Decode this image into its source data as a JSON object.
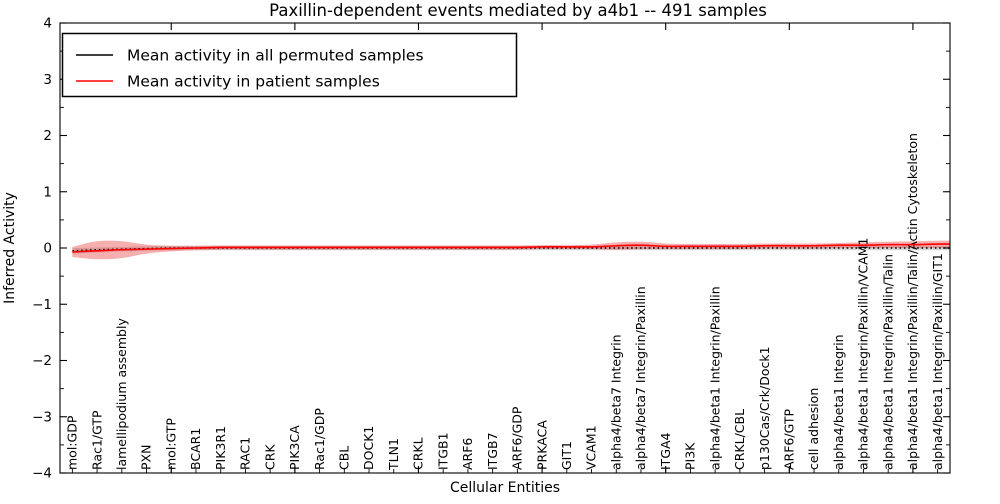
{
  "chart_data": {
    "type": "line",
    "title": "Paxillin-dependent events mediated by a4b1 -- 491 samples",
    "xlabel": "Cellular Entities",
    "ylabel": "Inferred Activity",
    "ylim": [
      -4,
      4
    ],
    "y_major_ticks": [
      -4,
      -3,
      -2,
      -1,
      0,
      1,
      2,
      3,
      4
    ],
    "y_minor_step": 0.5,
    "x_major_ticks": [
      4,
      9,
      14,
      19,
      24,
      29,
      34
    ],
    "grid": false,
    "legend_position": "upper left",
    "background": "#ffffff",
    "frame_color": "#000000",
    "categories": [
      "mol:GDP",
      "Rac1/GTP",
      "lamellipodium assembly",
      "PXN",
      "mol:GTP",
      "BCAR1",
      "PIK3R1",
      "RAC1",
      "CRK",
      "PIK3CA",
      "Rac1/GDP",
      "CBL",
      "DOCK1",
      "TLN1",
      "CRKL",
      "ITGB1",
      "ARF6",
      "ITGB7",
      "ARF6/GDP",
      "PRKACA",
      "GIT1",
      "VCAM1",
      "alpha4/beta7 Integrin",
      "alpha4/beta7 Integrin/Paxillin",
      "ITGA4",
      "PI3K",
      "alpha4/beta1 Integrin/Paxillin",
      "CRKL/CBL",
      "p130Cas/Crk/Dock1",
      "ARF6/GTP",
      "cell adhesion",
      "alpha4/beta1 Integrin",
      "alpha4/beta1 Integrin/Paxillin/VCAM1",
      "alpha4/beta1 Integrin/Paxillin/Talin",
      "alpha4/beta1 Integrin/Paxillin/Talin/Actin Cytoskeleton",
      "alpha4/beta1 Integrin/Paxillin/GIT1"
    ],
    "series": [
      {
        "name": "Mean activity in all permuted samples",
        "color": "#000000",
        "line_style": "dotted",
        "values": [
          -0.05,
          -0.03,
          -0.02,
          -0.01,
          0,
          0,
          0,
          0,
          0,
          0,
          0,
          0,
          0,
          0,
          0,
          0,
          0,
          0,
          0,
          0,
          0,
          0,
          0,
          0,
          0,
          0,
          0,
          0,
          0,
          0,
          0,
          0,
          0,
          0,
          0,
          0
        ]
      },
      {
        "name": "Mean activity in patient samples",
        "color": "#ff0000",
        "line_style": "solid",
        "values": [
          -0.07,
          -0.05,
          -0.03,
          -0.02,
          -0.01,
          0,
          0.01,
          0.01,
          0.01,
          0.01,
          0.01,
          0.01,
          0.01,
          0.01,
          0.01,
          0.01,
          0.01,
          0.01,
          0.01,
          0.02,
          0.02,
          0.02,
          0.04,
          0.05,
          0.03,
          0.03,
          0.03,
          0.03,
          0.04,
          0.04,
          0.04,
          0.05,
          0.05,
          0.06,
          0.06,
          0.07
        ]
      }
    ],
    "bands": [
      {
        "name": "permuted-samples-std-band",
        "color": "#777777",
        "opacity": 0.3,
        "upper": [
          0,
          0.01,
          0.02,
          0.03,
          0.04,
          0.04,
          0.04,
          0.04,
          0.04,
          0.04,
          0.04,
          0.04,
          0.04,
          0.04,
          0.04,
          0.04,
          0.04,
          0.04,
          0.04,
          0.04,
          0.04,
          0.04,
          0.04,
          0.04,
          0.04,
          0.04,
          0.04,
          0.04,
          0.04,
          0.04,
          0.04,
          0.04,
          0.04,
          0.04,
          0.04,
          0.04
        ],
        "lower": [
          -0.1,
          -0.08,
          -0.06,
          -0.05,
          -0.04,
          -0.04,
          -0.04,
          -0.04,
          -0.04,
          -0.04,
          -0.04,
          -0.04,
          -0.04,
          -0.04,
          -0.04,
          -0.04,
          -0.04,
          -0.04,
          -0.04,
          -0.04,
          -0.04,
          -0.04,
          -0.04,
          -0.04,
          -0.04,
          -0.04,
          -0.04,
          -0.04,
          -0.04,
          -0.04,
          -0.04,
          -0.04,
          -0.04,
          -0.04,
          -0.04,
          -0.04
        ]
      },
      {
        "name": "patient-samples-std-band",
        "color": "#e84040",
        "opacity": 0.42,
        "upper": [
          0.02,
          0.12,
          0.12,
          0.06,
          0.04,
          0.04,
          0.045,
          0.045,
          0.045,
          0.045,
          0.045,
          0.045,
          0.045,
          0.045,
          0.045,
          0.045,
          0.045,
          0.045,
          0.045,
          0.05,
          0.05,
          0.06,
          0.1,
          0.11,
          0.08,
          0.07,
          0.07,
          0.07,
          0.08,
          0.08,
          0.08,
          0.09,
          0.1,
          0.11,
          0.12,
          0.13
        ],
        "lower": [
          -0.16,
          -0.2,
          -0.18,
          -0.1,
          -0.06,
          -0.04,
          -0.03,
          -0.03,
          -0.03,
          -0.03,
          -0.03,
          -0.03,
          -0.03,
          -0.03,
          -0.03,
          -0.03,
          -0.03,
          -0.03,
          -0.03,
          -0.02,
          -0.02,
          -0.02,
          -0.03,
          -0.02,
          -0.02,
          -0.02,
          -0.02,
          -0.02,
          -0.01,
          -0.01,
          -0.01,
          0,
          0,
          0,
          0,
          0
        ]
      }
    ]
  }
}
